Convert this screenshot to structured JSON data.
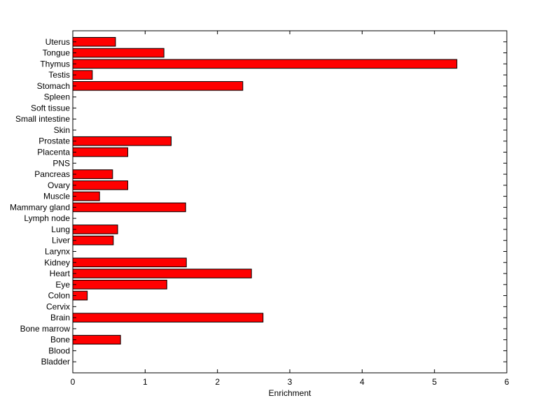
{
  "chart_data": {
    "type": "bar",
    "orientation": "horizontal",
    "title": "",
    "xlabel": "Enrichment",
    "ylabel": "",
    "xlim": [
      0,
      6
    ],
    "x_ticks": [
      0,
      1,
      2,
      3,
      4,
      5,
      6
    ],
    "grid": false,
    "legend": "none",
    "bar_color": "#ff0000",
    "bar_edge_color": "#000000",
    "categories": [
      "Uterus",
      "Tongue",
      "Thymus",
      "Testis",
      "Stomach",
      "Spleen",
      "Soft tissue",
      "Small intestine",
      "Skin",
      "Prostate",
      "Placenta",
      "PNS",
      "Pancreas",
      "Ovary",
      "Muscle",
      "Mammary gland",
      "Lymph node",
      "Lung",
      "Liver",
      "Larynx",
      "Kidney",
      "Heart",
      "Eye",
      "Colon",
      "Cervix",
      "Brain",
      "Bone marrow",
      "Bone",
      "Blood",
      "Bladder"
    ],
    "values": [
      0.59,
      1.26,
      5.31,
      0.27,
      2.35,
      0,
      0,
      0,
      0,
      1.36,
      0.76,
      0,
      0.55,
      0.76,
      0.37,
      1.56,
      0,
      0.62,
      0.56,
      0,
      1.57,
      2.47,
      1.3,
      0.2,
      0,
      2.63,
      0,
      0.66,
      0,
      0
    ]
  }
}
